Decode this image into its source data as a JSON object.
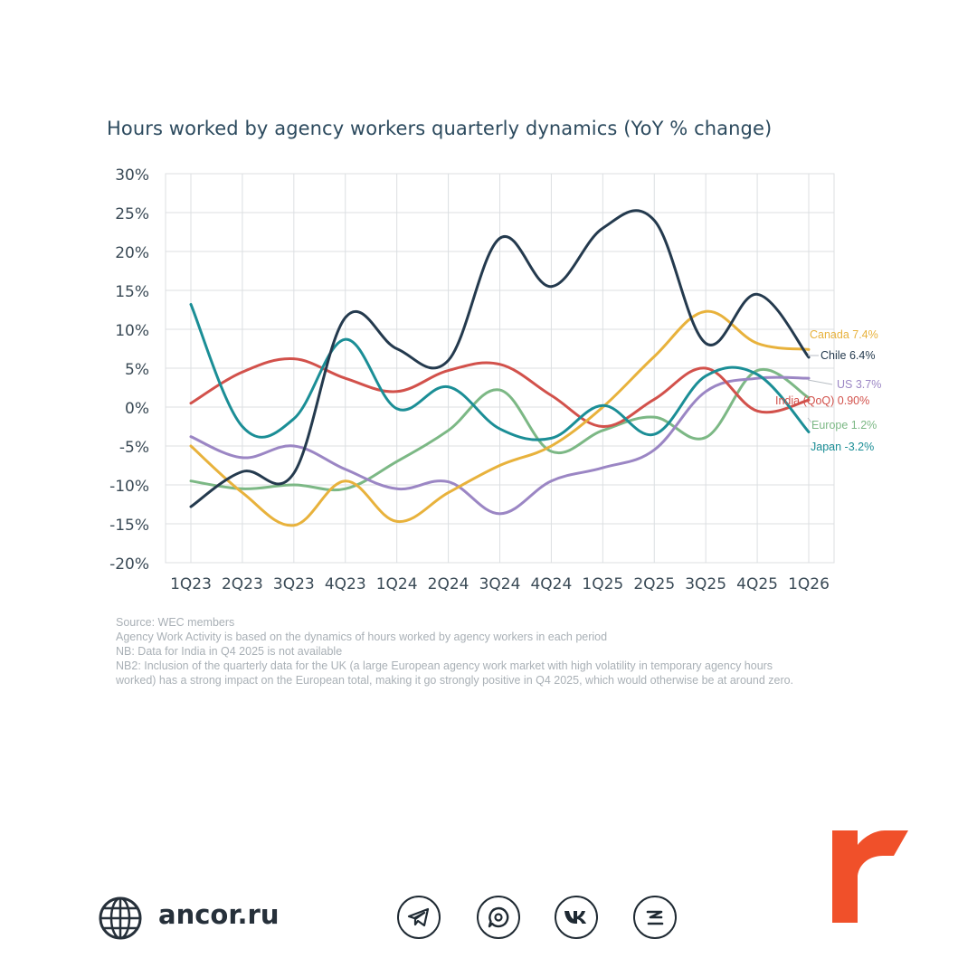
{
  "chart_data": {
    "type": "line",
    "title": "Hours worked by agency workers quarterly dynamics (YoY % change)",
    "categories": [
      "1Q23",
      "2Q23",
      "3Q23",
      "4Q23",
      "1Q24",
      "2Q24",
      "3Q24",
      "4Q24",
      "1Q25",
      "2Q25",
      "3Q25",
      "4Q25",
      "1Q26"
    ],
    "ylim": [
      -20,
      30
    ],
    "yticks": [
      30,
      25,
      20,
      15,
      10,
      5,
      0,
      -5,
      -10,
      -15,
      -20
    ],
    "ytick_labels": [
      "30%",
      "25%",
      "20%",
      "15%",
      "10%",
      "5%",
      "0%",
      "-5%",
      "-10%",
      "-15%",
      "-20%"
    ],
    "grid": true,
    "legend": "inline labels at right",
    "series": [
      {
        "name": "Canada",
        "end_label": "Canada 7.4%",
        "color": "#e8b23c",
        "values": [
          -5,
          -11,
          -15.2,
          -9.5,
          -14.7,
          -11,
          -7.5,
          -5,
          0,
          6.5,
          12.3,
          8.2,
          7.4
        ]
      },
      {
        "name": "Chile",
        "end_label": "Chile 6.4%",
        "color": "#243a4e",
        "values": [
          -12.8,
          -8.3,
          -8.5,
          11.5,
          7.5,
          6,
          21.7,
          15.5,
          23,
          24,
          8.2,
          14.5,
          6.4
        ]
      },
      {
        "name": "US",
        "end_label": "US 3.7%",
        "color": "#9b86c4",
        "values": [
          -3.8,
          -6.5,
          -5,
          -8,
          -10.5,
          -9.6,
          -13.7,
          -9.5,
          -7.8,
          -5.5,
          2,
          3.7,
          3.7
        ]
      },
      {
        "name": "India (QoQ)",
        "end_label": "India (QoQ) 0.90%",
        "color": "#d2514b",
        "values": [
          0.5,
          4.5,
          6.2,
          3.7,
          2,
          4.7,
          5.5,
          1.5,
          -2.5,
          1,
          5,
          -0.5,
          0.9
        ]
      },
      {
        "name": "Europe",
        "end_label": "Europe 1.2%",
        "color": "#7cb885",
        "values": [
          -9.5,
          -10.5,
          -10,
          -10.5,
          -7,
          -3,
          2.2,
          -5.7,
          -3,
          -1.3,
          -3.9,
          4.7,
          1.2
        ]
      },
      {
        "name": "Japan",
        "end_label": "Japan -3.2%",
        "color": "#1b8e96",
        "values": [
          13.2,
          -2.5,
          -1.5,
          8.7,
          -0.2,
          2.6,
          -2.8,
          -4,
          0.2,
          -3.5,
          4,
          4.2,
          -3.2
        ]
      }
    ]
  },
  "notes": [
    "Source: WEC members",
    "Agency Work Activity is based on the dynamics of hours worked by agency workers in each period",
    "NB: Data for India in Q4 2025 is not available",
    "NB2: Inclusion of the quarterly data for the UK (a large European agency work market with high volatility in temporary agency hours",
    "worked) has a strong impact on the European total, making it go strongly positive in Q4 2025, which would otherwise be at around zero."
  ],
  "footer": {
    "site": "ancor.ru",
    "globe_icon": "globe-icon",
    "social_icons": [
      "telegram-icon",
      "chat-icon",
      "vk-icon",
      "zen-icon"
    ],
    "social_color": "#1f2a33",
    "logo_color": "#f0502a"
  }
}
